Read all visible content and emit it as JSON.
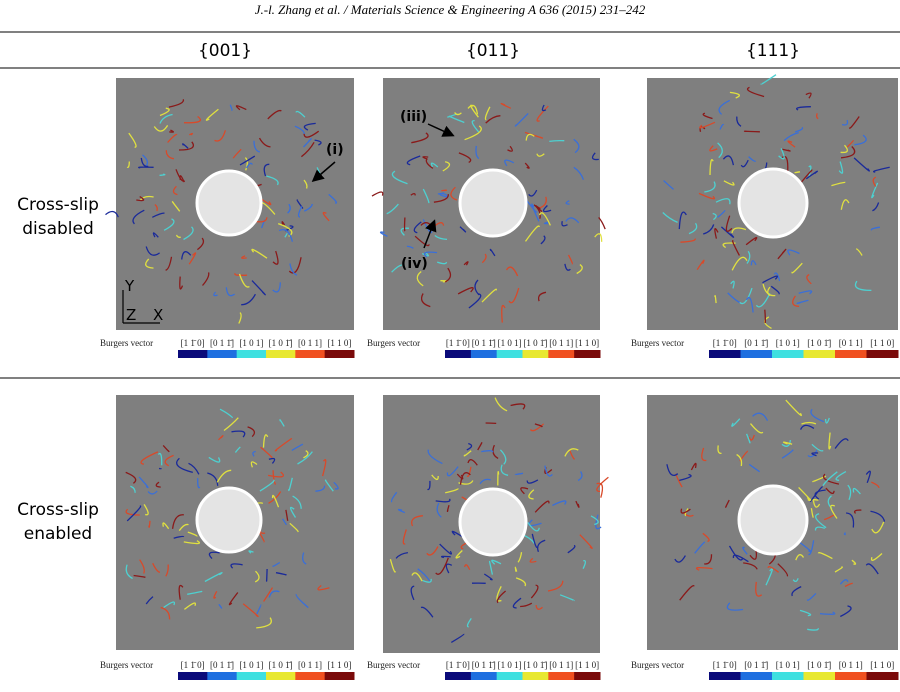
{
  "header": {
    "citation": "J.-l. Zhang et al. / Materials Science & Engineering A 636 (2015) 231–242"
  },
  "columns": [
    "{001}",
    "{011}",
    "{111}"
  ],
  "rows": [
    "Cross-slip disabled",
    "Cross-slip enabled"
  ],
  "colorbar": {
    "title": "Burgers vector",
    "labels": [
      "[1 1̄ 0]",
      "[0 1 1̄]",
      "[1 0 1]",
      "[1 0 1̄]",
      "[0 1 1]",
      "[1 1 0]"
    ]
  },
  "axes": {
    "y": "Y",
    "z": "Z",
    "x": "X"
  },
  "annotations": [
    "(i)",
    "(iii)",
    "(iv)"
  ]
}
